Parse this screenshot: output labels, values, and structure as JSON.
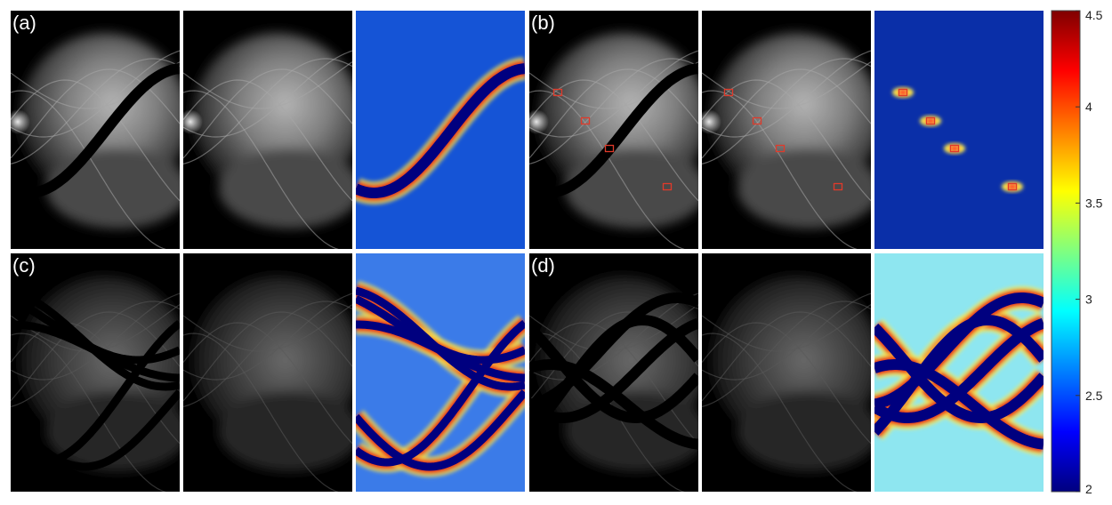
{
  "figure": {
    "panels": [
      {
        "label": "(a)",
        "tiles": [
          "sinogram-with-metal-trace",
          "sinogram-inpainted",
          "error-map"
        ]
      },
      {
        "label": "(b)",
        "tiles": [
          "sinogram-with-metal-trace",
          "sinogram-inpainted",
          "error-map"
        ]
      },
      {
        "label": "(c)",
        "tiles": [
          "sinogram-with-metal-trace",
          "sinogram-inpainted",
          "error-map"
        ]
      },
      {
        "label": "(d)",
        "tiles": [
          "sinogram-with-metal-trace",
          "sinogram-inpainted",
          "error-map"
        ]
      }
    ],
    "colorbar": {
      "colormap": "jet",
      "min": 2,
      "max": 4.5,
      "ticks": [
        {
          "value": 2,
          "label": "2"
        },
        {
          "value": 2.5,
          "label": "2.5"
        },
        {
          "value": 3,
          "label": "3"
        },
        {
          "value": 3.5,
          "label": "3.5"
        },
        {
          "value": 4,
          "label": "4"
        },
        {
          "value": 4.5,
          "label": "4.5"
        }
      ]
    },
    "marker_color": "#e03a2a",
    "metal_trace_color": "#00007f"
  }
}
